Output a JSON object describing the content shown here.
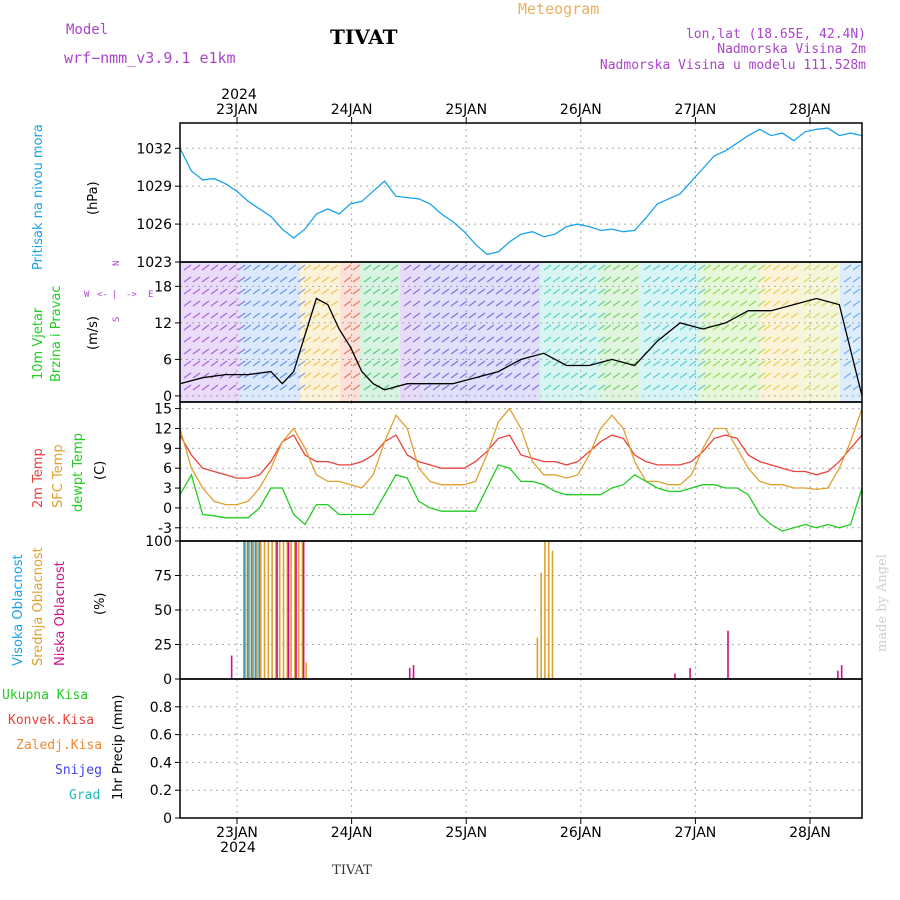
{
  "header": {
    "model_label": "Model",
    "model_name": "wrf−nmm_v3.9.1  e1km",
    "station": "TIVAT",
    "product": "Meteogram",
    "lonlat": "lon,lat (18.65E, 42.4N)",
    "elevation": "Nadmorska Visina 2m",
    "model_elevation": "Nadmorska Visina u modelu 111.528m",
    "year": "2024",
    "footer_station": "TIVAT",
    "credit": "made by Angel"
  },
  "colors": {
    "pressure": "#1aa3e8",
    "t2m": "#e8423c",
    "sfc": "#e0a030",
    "dewpt": "#22cc22",
    "high_cloud": "#1aa3e8",
    "mid_cloud": "#e0a030",
    "low_cloud": "#cc1188",
    "grid": "#aaaaaa"
  },
  "chart_data": [
    {
      "type": "line",
      "panel": "pressure",
      "title": "",
      "ylabel_left": "Pritisak na nivou mora",
      "ylabel_unit": "(hPa)",
      "x_ticks": [
        "23JAN",
        "24JAN",
        "25JAN",
        "26JAN",
        "27JAN",
        "28JAN"
      ],
      "ylim": [
        1023,
        1034
      ],
      "y_ticks": [
        1023,
        1026,
        1029,
        1032
      ],
      "series": [
        {
          "name": "",
          "x": [
            0,
            3,
            6,
            9,
            12,
            15,
            18,
            21,
            24,
            27,
            30,
            33,
            36,
            39,
            42,
            45,
            48,
            51,
            54,
            57,
            60,
            63,
            66,
            69,
            72,
            75,
            78,
            81,
            84,
            87,
            90,
            93,
            96,
            99,
            102,
            105,
            108,
            111,
            114,
            117,
            120,
            123,
            126,
            129,
            132,
            135,
            138,
            141,
            144,
            147,
            150,
            153,
            156,
            159,
            162,
            165,
            168,
            171,
            174,
            177,
            180
          ],
          "values": [
            1032,
            1030.2,
            1029.5,
            1029.6,
            1029.2,
            1028.6,
            1027.8,
            1027.2,
            1026.6,
            1025.6,
            1024.9,
            1025.6,
            1026.8,
            1027.2,
            1026.8,
            1027.6,
            1027.8,
            1028.6,
            1029.4,
            1028.2,
            1028.1,
            1028.0,
            1027.6,
            1026.8,
            1026.2,
            1025.4,
            1024.4,
            1023.6,
            1023.8,
            1024.6,
            1025.2,
            1025.4,
            1025.0,
            1025.2,
            1025.8,
            1026.0,
            1025.8,
            1025.5,
            1025.6,
            1025.4,
            1025.5,
            1026.5,
            1027.6,
            1028.0,
            1028.4,
            1029.4,
            1030.4,
            1031.4,
            1031.8,
            1032.4,
            1033.0,
            1033.5,
            1033.0,
            1033.2,
            1032.6,
            1033.3,
            1033.5,
            1033.6,
            1033.0,
            1033.2,
            1033.0
          ]
        }
      ]
    },
    {
      "type": "line",
      "panel": "wind",
      "ylabel_left": [
        "10m Vjetar",
        "Brzina i Pravac"
      ],
      "ylabel_unit": "(m/s)",
      "compass": {
        "N": "N",
        "S": "S",
        "E": "E",
        "W": "W"
      },
      "ylim": [
        -1,
        22
      ],
      "y_ticks": [
        0,
        6,
        12,
        18
      ],
      "series": [
        {
          "name": "",
          "x": [
            0,
            6,
            12,
            18,
            24,
            27,
            30,
            33,
            36,
            39,
            42,
            45,
            48,
            51,
            54,
            57,
            60,
            66,
            72,
            78,
            84,
            90,
            96,
            102,
            108,
            114,
            120,
            126,
            132,
            138,
            144,
            150,
            156,
            162,
            168,
            174,
            180
          ],
          "values": [
            2,
            3,
            3.5,
            3.5,
            4,
            2,
            4,
            10,
            16,
            15,
            11,
            8,
            4,
            2,
            1,
            1.5,
            2,
            2,
            2,
            3,
            4,
            6,
            7,
            5,
            5,
            6,
            5,
            9,
            12,
            11,
            12,
            14,
            14,
            15,
            16,
            15,
            0
          ]
        }
      ]
    },
    {
      "type": "line",
      "panel": "temperature",
      "ylabel_left": [
        "2m Temp",
        "SFC Temp",
        "dewpt Temp"
      ],
      "ylabel_unit": "(C)",
      "ylim": [
        -5,
        16
      ],
      "y_ticks": [
        -3,
        0,
        3,
        6,
        9,
        12,
        15
      ],
      "x": [
        0,
        3,
        6,
        9,
        12,
        15,
        18,
        21,
        24,
        27,
        30,
        33,
        36,
        39,
        42,
        45,
        48,
        51,
        54,
        57,
        60,
        63,
        66,
        69,
        72,
        75,
        78,
        81,
        84,
        87,
        90,
        93,
        96,
        99,
        102,
        105,
        108,
        111,
        114,
        117,
        120,
        123,
        126,
        129,
        132,
        135,
        138,
        141,
        144,
        147,
        150,
        153,
        156,
        159,
        162,
        165,
        168,
        171,
        174,
        177,
        180
      ],
      "series": [
        {
          "name": "2m Temp",
          "values": [
            11,
            8,
            6,
            5.5,
            5,
            4.5,
            4.5,
            5,
            7,
            10,
            11,
            8,
            7,
            7,
            6.5,
            6.5,
            7,
            8,
            10,
            11,
            8,
            7,
            6.5,
            6,
            6,
            6,
            7,
            8.5,
            10.5,
            11,
            8,
            7.5,
            7,
            7,
            6.5,
            7,
            8.5,
            10,
            11,
            10.5,
            8,
            7,
            6.5,
            6.5,
            6.5,
            7,
            8.5,
            10.5,
            11,
            10.5,
            8,
            7,
            6.5,
            6,
            5.5,
            5.5,
            5,
            5.5,
            7,
            9,
            11
          ]
        },
        {
          "name": "SFC Temp",
          "values": [
            12,
            6,
            3,
            1,
            0.5,
            0.5,
            1,
            3,
            6,
            10,
            12,
            9,
            5,
            4,
            4,
            3.5,
            3,
            5,
            10,
            14,
            12,
            6,
            4,
            3.5,
            3.5,
            3.5,
            4,
            8,
            13,
            15,
            12,
            7,
            5,
            5,
            4.5,
            5,
            8,
            12,
            14,
            12,
            7,
            4,
            4,
            3.5,
            3.5,
            5,
            9,
            12,
            12,
            9,
            6,
            4,
            3.5,
            3.5,
            3,
            3,
            2.8,
            3,
            6,
            10,
            15
          ]
        },
        {
          "name": "dewpt Temp",
          "values": [
            2,
            5,
            -1,
            -1.2,
            -1.5,
            -1.5,
            -1.5,
            0,
            3,
            3,
            -1,
            -2.5,
            0.5,
            0.5,
            -1,
            -1,
            -1,
            -1,
            2,
            5,
            4.5,
            1,
            0,
            -0.5,
            -0.5,
            -0.5,
            -0.5,
            3,
            6.5,
            6,
            4,
            4,
            3.5,
            2.5,
            2,
            2,
            2,
            2,
            3,
            3.5,
            5,
            4,
            3,
            2.5,
            2.5,
            3,
            3.5,
            3.5,
            3,
            3,
            2,
            -1,
            -2.5,
            -3.5,
            -3,
            -2.5,
            -3,
            -2.5,
            -3,
            -2.5,
            3
          ]
        }
      ]
    },
    {
      "type": "bar",
      "panel": "cloud",
      "ylabel_left": [
        "Visoka Oblacnost",
        "Srednja Oblacnost",
        "Niska Oblacnost"
      ],
      "ylabel_unit": "(%)",
      "ylim": [
        0,
        100
      ],
      "y_ticks": [
        0,
        25,
        50,
        75,
        100
      ],
      "series": [
        {
          "name": "Visoka Oblacnost",
          "x": [
            17,
            18,
            19,
            20,
            21
          ],
          "values": [
            100,
            100,
            100,
            100,
            100
          ]
        },
        {
          "name": "Srednja Oblacnost",
          "x": [
            17,
            18,
            19,
            20,
            21,
            22,
            23,
            24,
            25,
            26,
            27,
            28,
            29,
            30,
            31,
            32,
            33,
            94,
            95,
            96,
            97,
            98
          ],
          "values": [
            100,
            100,
            100,
            100,
            100,
            100,
            100,
            100,
            100,
            100,
            100,
            100,
            100,
            100,
            100,
            100,
            12,
            30,
            77,
            100,
            100,
            93
          ]
        },
        {
          "name": "Niska Oblacnost",
          "x": [
            13,
            25,
            28,
            30,
            32,
            60,
            61,
            130,
            134,
            144,
            173,
            174
          ],
          "values": [
            17,
            100,
            100,
            100,
            100,
            8,
            10,
            4,
            8,
            35,
            6,
            10
          ]
        }
      ]
    },
    {
      "type": "bar",
      "panel": "precip",
      "ylabel_left": [
        "Ukupna  Kisa",
        "Konvek.Kisa",
        "Zaledj.Kisa",
        "Snijeg",
        "Grad"
      ],
      "ylabel_unit": "1hr Precip (mm)",
      "ylim": [
        0,
        1
      ],
      "y_ticks": [
        0,
        0.2,
        0.4,
        0.6,
        0.8
      ],
      "series": []
    }
  ]
}
